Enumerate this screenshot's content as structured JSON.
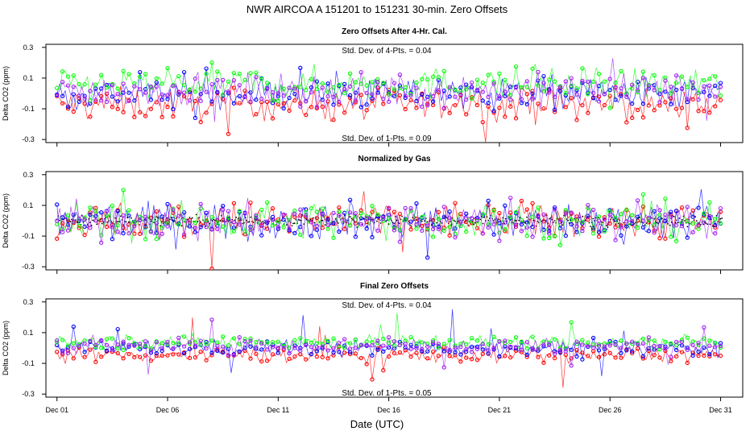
{
  "chart_data": {
    "type": "scatter",
    "title": "NWR   AIRCOA A   151201 to 151231   30-min. Zero Offsets",
    "xlabel": "Date (UTC)",
    "x_range_days": [
      0.5,
      32.0
    ],
    "x_ticks": [
      {
        "day": 1,
        "label": "Dec 01"
      },
      {
        "day": 6,
        "label": "Dec 06"
      },
      {
        "day": 11,
        "label": "Dec 11"
      },
      {
        "day": 16,
        "label": "Dec 16"
      },
      {
        "day": 21,
        "label": "Dec 21"
      },
      {
        "day": 26,
        "label": "Dec 26"
      },
      {
        "day": 31,
        "label": "Dec 31"
      }
    ],
    "series_colors": {
      "gas1": "#ff0000",
      "gas2": "#0000ff",
      "gas3": "#00ff00",
      "gas4": "#a020f0",
      "mean": "#000000"
    },
    "panels": [
      {
        "title": "Zero Offsets After 4-Hr. Cal.",
        "ylabel": "Delta CO2 (ppm)",
        "ylim": [
          -0.32,
          0.32
        ],
        "yticks": [
          "0.3",
          "0.1",
          "-0.1",
          "-0.3"
        ],
        "ytick_values": [
          0.3,
          0.1,
          -0.1,
          -0.3
        ],
        "stat_top": "Std. Dev. of 4-Pts. = 0.04",
        "stat_bottom": "Std. Dev. of 1-Pts. = 0.09",
        "offsets": {
          "gas1": -0.07,
          "gas2": 0.0,
          "gas3": 0.06,
          "gas4": 0.02
        },
        "spread": 0.075,
        "mean_line": false
      },
      {
        "title": "Normalized by Gas",
        "ylabel": "Delta CO2 (ppm)",
        "ylim": [
          -0.32,
          0.32
        ],
        "yticks": [
          "0.3",
          "0.1",
          "-0.1",
          "-0.3"
        ],
        "ytick_values": [
          0.3,
          0.1,
          -0.1,
          -0.3
        ],
        "stat_top": "",
        "stat_bottom": "",
        "offsets": {
          "gas1": 0.0,
          "gas2": 0.0,
          "gas3": 0.0,
          "gas4": 0.0
        },
        "spread": 0.085,
        "mean_line": true
      },
      {
        "title": "Final Zero Offsets",
        "ylabel": "Delta CO2 (ppm)",
        "ylim": [
          -0.32,
          0.32
        ],
        "yticks": [
          "0.3",
          "0.1",
          "-0.1",
          "-0.3"
        ],
        "ytick_values": [
          0.3,
          0.1,
          -0.1,
          -0.3
        ],
        "stat_top": "Std. Dev. of 4-Pts. = 0.04",
        "stat_bottom": "Std. Dev. of 1-Pts. = 0.05",
        "offsets": {
          "gas1": -0.045,
          "gas2": 0.0,
          "gas3": 0.04,
          "gas4": 0.015
        },
        "spread": 0.035,
        "mean_line": false
      }
    ]
  }
}
